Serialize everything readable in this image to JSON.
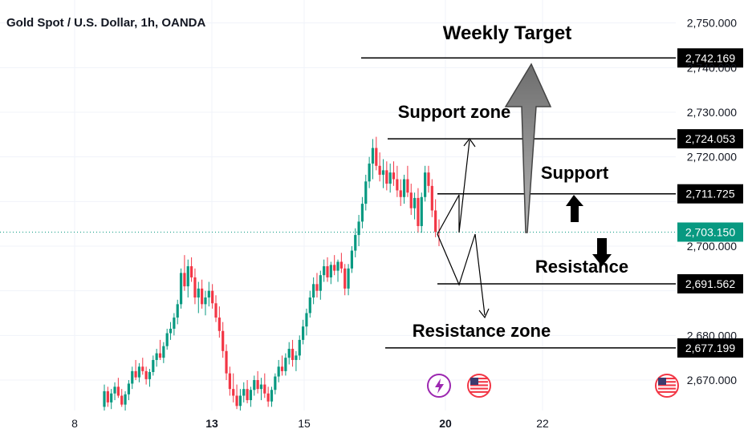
{
  "chart_data": {
    "type": "candlestick",
    "title": "Gold Spot / U.S. Dollar, 1h, OANDA",
    "y_ticks": [
      "2,750.000",
      "2,740.000",
      "2,730.000",
      "2,720.000",
      "2,700.000",
      "2,680.000",
      "2,670.000"
    ],
    "y_tick_values": [
      2750,
      2740,
      2730,
      2720,
      2700,
      2680,
      2670
    ],
    "x_ticks": [
      {
        "label": "8",
        "bold": false
      },
      {
        "label": "13",
        "bold": true
      },
      {
        "label": "15",
        "bold": false
      },
      {
        "label": "20",
        "bold": true
      },
      {
        "label": "22",
        "bold": false
      }
    ],
    "ylim": [
      2662,
      2755
    ],
    "current_price": {
      "label": "2,703.150",
      "value": 2703.15,
      "color": "#089981"
    },
    "levels": [
      {
        "name": "weekly-target-line",
        "label": "2,742.169",
        "value": 2742.169
      },
      {
        "name": "support-zone-line",
        "label": "2,724.053",
        "value": 2724.053
      },
      {
        "name": "support-line",
        "label": "2,711.725",
        "value": 2711.725
      },
      {
        "name": "resistance-line",
        "label": "2,691.562",
        "value": 2691.562
      },
      {
        "name": "resistance-zone-line",
        "label": "2,677.199",
        "value": 2677.199
      }
    ],
    "annotations": {
      "weekly_target": "Weekly Target",
      "support_zone": "Support zone",
      "support": "Support",
      "resistance": "Resistance",
      "resistance_zone": "Resistance zone"
    },
    "colors": {
      "up": "#089981",
      "down": "#f23645",
      "arrow_gray": "#8a8a8a"
    },
    "icons": [
      "lightning-event-icon",
      "us-flag-event-icon",
      "us-flag-event-icon"
    ],
    "candles": [
      [
        2664.0,
        2669.0,
        2663.0,
        2667.5
      ],
      [
        2667.5,
        2668.5,
        2664.0,
        2665.0
      ],
      [
        2665.0,
        2668.0,
        2663.5,
        2667.0
      ],
      [
        2667.0,
        2669.5,
        2665.5,
        2668.5
      ],
      [
        2668.5,
        2670.5,
        2666.0,
        2666.5
      ],
      [
        2666.5,
        2668.0,
        2664.0,
        2664.5
      ],
      [
        2664.5,
        2667.5,
        2663.0,
        2666.8
      ],
      [
        2666.8,
        2670.0,
        2665.5,
        2669.2
      ],
      [
        2669.2,
        2673.0,
        2668.0,
        2672.0
      ],
      [
        2672.0,
        2674.5,
        2670.0,
        2670.6
      ],
      [
        2670.6,
        2673.8,
        2669.5,
        2673.0
      ],
      [
        2673.0,
        2675.0,
        2671.2,
        2672.0
      ],
      [
        2672.0,
        2673.0,
        2669.0,
        2670.2
      ],
      [
        2670.2,
        2672.5,
        2668.5,
        2671.8
      ],
      [
        2671.8,
        2675.5,
        2671.0,
        2674.5
      ],
      [
        2674.5,
        2677.0,
        2673.0,
        2676.0
      ],
      [
        2676.0,
        2679.0,
        2674.5,
        2675.0
      ],
      [
        2675.0,
        2678.5,
        2673.8,
        2677.6
      ],
      [
        2677.6,
        2681.5,
        2676.8,
        2680.5
      ],
      [
        2680.5,
        2683.0,
        2679.0,
        2681.5
      ],
      [
        2681.5,
        2685.0,
        2680.0,
        2684.0
      ],
      [
        2684.0,
        2688.0,
        2682.5,
        2687.0
      ],
      [
        2687.0,
        2695.0,
        2686.0,
        2694.0
      ],
      [
        2694.0,
        2698.0,
        2690.0,
        2691.0
      ],
      [
        2691.0,
        2697.0,
        2688.5,
        2695.5
      ],
      [
        2695.5,
        2697.5,
        2692.0,
        2693.0
      ],
      [
        2693.0,
        2695.0,
        2687.0,
        2688.5
      ],
      [
        2688.5,
        2692.0,
        2685.0,
        2690.5
      ],
      [
        2690.5,
        2692.5,
        2686.0,
        2687.0
      ],
      [
        2687.0,
        2690.0,
        2684.5,
        2688.5
      ],
      [
        2688.5,
        2692.0,
        2686.5,
        2690.0
      ],
      [
        2690.0,
        2691.5,
        2686.0,
        2687.2
      ],
      [
        2687.2,
        2689.0,
        2683.0,
        2684.0
      ],
      [
        2684.0,
        2686.5,
        2679.5,
        2681.0
      ],
      [
        2681.0,
        2683.0,
        2675.0,
        2676.5
      ],
      [
        2676.5,
        2678.0,
        2670.0,
        2671.5
      ],
      [
        2671.5,
        2673.0,
        2666.5,
        2668.0
      ],
      [
        2668.0,
        2671.5,
        2665.0,
        2666.5
      ],
      [
        2666.5,
        2669.0,
        2663.5,
        2664.2
      ],
      [
        2664.2,
        2668.0,
        2663.0,
        2666.5
      ],
      [
        2666.5,
        2669.5,
        2665.0,
        2668.0
      ],
      [
        2668.0,
        2670.0,
        2664.8,
        2665.5
      ],
      [
        2665.5,
        2668.5,
        2664.0,
        2667.8
      ],
      [
        2667.8,
        2671.0,
        2666.5,
        2670.0
      ],
      [
        2670.0,
        2672.0,
        2667.0,
        2668.0
      ],
      [
        2668.0,
        2670.5,
        2665.5,
        2669.0
      ],
      [
        2669.0,
        2671.5,
        2666.0,
        2667.0
      ],
      [
        2667.0,
        2668.5,
        2664.0,
        2665.2
      ],
      [
        2665.2,
        2668.5,
        2664.0,
        2667.8
      ],
      [
        2667.8,
        2671.5,
        2666.8,
        2670.8
      ],
      [
        2670.8,
        2674.5,
        2669.5,
        2673.0
      ],
      [
        2673.0,
        2675.5,
        2671.0,
        2672.0
      ],
      [
        2672.0,
        2676.0,
        2671.0,
        2675.0
      ],
      [
        2675.0,
        2678.5,
        2673.5,
        2677.0
      ],
      [
        2677.0,
        2679.0,
        2673.0,
        2674.5
      ],
      [
        2674.5,
        2676.5,
        2672.0,
        2675.5
      ],
      [
        2675.5,
        2680.0,
        2674.5,
        2679.0
      ],
      [
        2679.0,
        2683.5,
        2678.0,
        2682.0
      ],
      [
        2682.0,
        2686.0,
        2680.0,
        2685.0
      ],
      [
        2685.0,
        2690.0,
        2684.0,
        2688.5
      ],
      [
        2688.5,
        2693.0,
        2687.0,
        2691.5
      ],
      [
        2691.5,
        2694.0,
        2688.5,
        2690.0
      ],
      [
        2690.0,
        2694.5,
        2688.0,
        2693.5
      ],
      [
        2693.5,
        2697.0,
        2692.0,
        2695.5
      ],
      [
        2695.5,
        2697.5,
        2692.0,
        2693.0
      ],
      [
        2693.0,
        2696.5,
        2691.5,
        2695.8
      ],
      [
        2695.8,
        2698.0,
        2693.5,
        2694.5
      ],
      [
        2694.5,
        2697.0,
        2692.0,
        2696.5
      ],
      [
        2696.5,
        2698.5,
        2694.0,
        2695.0
      ],
      [
        2695.0,
        2696.0,
        2689.0,
        2690.5
      ],
      [
        2690.5,
        2696.0,
        2689.0,
        2695.0
      ],
      [
        2695.0,
        2700.0,
        2694.0,
        2699.0
      ],
      [
        2699.0,
        2704.0,
        2697.5,
        2702.5
      ],
      [
        2702.5,
        2707.0,
        2700.0,
        2705.5
      ],
      [
        2705.5,
        2711.0,
        2704.0,
        2709.5
      ],
      [
        2709.5,
        2716.0,
        2708.0,
        2714.5
      ],
      [
        2714.5,
        2720.0,
        2713.0,
        2718.5
      ],
      [
        2718.5,
        2724.0,
        2715.0,
        2722.0
      ],
      [
        2722.0,
        2724.5,
        2717.0,
        2718.0
      ],
      [
        2718.0,
        2721.0,
        2714.5,
        2716.0
      ],
      [
        2716.0,
        2719.5,
        2713.0,
        2717.0
      ],
      [
        2717.0,
        2719.0,
        2712.5,
        2714.0
      ],
      [
        2714.0,
        2718.5,
        2712.0,
        2716.5
      ],
      [
        2716.5,
        2719.0,
        2713.5,
        2715.0
      ],
      [
        2715.0,
        2718.0,
        2711.0,
        2712.5
      ],
      [
        2712.5,
        2715.0,
        2709.0,
        2711.0
      ],
      [
        2711.0,
        2716.0,
        2709.5,
        2715.0
      ],
      [
        2715.0,
        2718.0,
        2711.0,
        2712.0
      ],
      [
        2712.0,
        2714.0,
        2707.0,
        2708.5
      ],
      [
        2708.5,
        2712.0,
        2706.0,
        2710.8
      ],
      [
        2710.8,
        2713.0,
        2703.0,
        2704.5
      ],
      [
        2704.5,
        2712.0,
        2703.0,
        2711.0
      ],
      [
        2711.0,
        2718.0,
        2710.0,
        2716.5
      ],
      [
        2716.5,
        2718.0,
        2712.0,
        2713.5
      ],
      [
        2713.5,
        2715.0,
        2706.5,
        2708.0
      ],
      [
        2708.0,
        2710.5,
        2702.0,
        2703.2
      ],
      [
        2703.2,
        2706.0,
        2700.0,
        2703.15
      ]
    ]
  }
}
